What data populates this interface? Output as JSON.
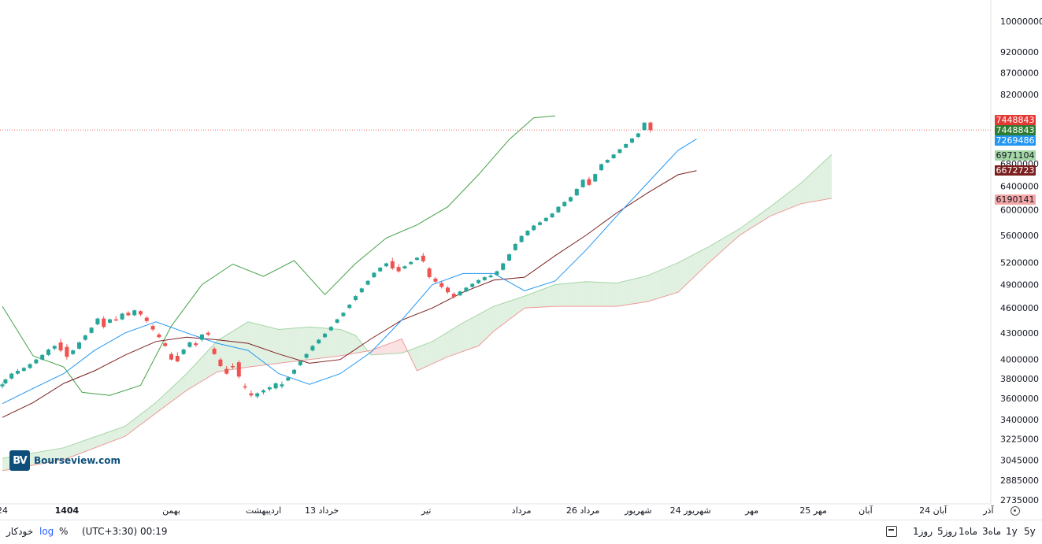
{
  "chart_data": {
    "type": "candlestick",
    "scale": "log",
    "indicator": "ichimoku",
    "y_ticks": [
      10000000,
      9200000,
      8700000,
      8200000,
      6800000,
      6400000,
      6000000,
      5600000,
      5200000,
      4900000,
      4600000,
      4300000,
      4000000,
      3800000,
      3600000,
      3400000,
      3225000,
      3045000,
      2885000,
      2735000
    ],
    "x_labels": [
      {
        "label": "24",
        "idx": 0
      },
      {
        "label": "1404",
        "idx": 21,
        "bold": true
      },
      {
        "label": "بهمن",
        "idx": 55
      },
      {
        "label": "اردیبهشت",
        "idx": 85
      },
      {
        "label": "13 خرداد",
        "idx": 104
      },
      {
        "label": "تیر",
        "idx": 138
      },
      {
        "label": "مرداد",
        "idx": 169
      },
      {
        "label": "26 مرداد",
        "idx": 189
      },
      {
        "label": "شهریور",
        "idx": 207
      },
      {
        "label": "24 شهریور",
        "idx": 224
      },
      {
        "label": "مهر",
        "idx": 244
      },
      {
        "label": "25 مهر",
        "idx": 264
      },
      {
        "label": "آبان",
        "idx": 281
      },
      {
        "label": "24 آبان",
        "idx": 303
      },
      {
        "label": "آذر",
        "idx": 321
      }
    ],
    "current_price": 7448843,
    "price_badges": [
      {
        "value": "7448843",
        "color": "#e53935"
      },
      {
        "value": "7448843",
        "color": "#2e7d32"
      },
      {
        "value": "7269486",
        "color": "#2196f3"
      },
      {
        "value": "6971104",
        "color": "#a5d6a7"
      },
      {
        "value": "6672723",
        "color": "#7b1f1f"
      },
      {
        "value": "6190141",
        "color": "#f4a7a7"
      }
    ],
    "candles": [
      [
        3720000,
        3760000,
        3700000,
        3740000
      ],
      [
        3750000,
        3800000,
        3740000,
        3790000
      ],
      [
        3800000,
        3860000,
        3790000,
        3850000
      ],
      [
        3850000,
        3900000,
        3840000,
        3880000
      ],
      [
        3880000,
        3920000,
        3870000,
        3910000
      ],
      [
        3910000,
        3960000,
        3900000,
        3950000
      ],
      [
        3960000,
        4010000,
        3950000,
        4000000
      ],
      [
        4000000,
        4060000,
        3990000,
        4050000
      ],
      [
        4050000,
        4120000,
        4040000,
        4110000
      ],
      [
        4120000,
        4160000,
        4100000,
        4150000
      ],
      [
        4190000,
        4230000,
        4080000,
        4100000
      ],
      [
        4140000,
        4170000,
        4000000,
        4030000
      ],
      [
        4060000,
        4110000,
        4050000,
        4100000
      ],
      [
        4120000,
        4200000,
        4110000,
        4190000
      ],
      [
        4220000,
        4280000,
        4210000,
        4270000
      ],
      [
        4300000,
        4370000,
        4290000,
        4360000
      ],
      [
        4400000,
        4480000,
        4390000,
        4470000
      ],
      [
        4470000,
        4500000,
        4350000,
        4370000
      ],
      [
        4420000,
        4470000,
        4410000,
        4460000
      ],
      [
        4460000,
        4500000,
        4440000,
        4450000
      ],
      [
        4460000,
        4540000,
        4450000,
        4530000
      ],
      [
        4540000,
        4560000,
        4500000,
        4510000
      ],
      [
        4510000,
        4580000,
        4500000,
        4570000
      ],
      [
        4560000,
        4570000,
        4500000,
        4520000
      ],
      [
        4480000,
        4500000,
        4420000,
        4440000
      ],
      [
        4380000,
        4400000,
        4320000,
        4340000
      ],
      [
        4280000,
        4300000,
        4240000,
        4250000
      ],
      [
        4180000,
        4200000,
        4140000,
        4150000
      ],
      [
        4060000,
        4080000,
        3990000,
        4000000
      ],
      [
        4040000,
        4080000,
        3970000,
        3980000
      ],
      [
        4060000,
        4120000,
        4050000,
        4110000
      ],
      [
        4140000,
        4200000,
        4130000,
        4190000
      ],
      [
        4180000,
        4200000,
        4140000,
        4160000
      ],
      [
        4220000,
        4290000,
        4200000,
        4280000
      ],
      [
        4300000,
        4320000,
        4260000,
        4280000
      ],
      [
        4120000,
        4140000,
        4050000,
        4060000
      ],
      [
        4000000,
        4020000,
        3920000,
        3930000
      ],
      [
        3900000,
        3930000,
        3840000,
        3850000
      ],
      [
        3930000,
        3960000,
        3900000,
        3920000
      ],
      [
        3970000,
        3990000,
        3800000,
        3820000
      ],
      [
        3720000,
        3750000,
        3690000,
        3710000
      ],
      [
        3650000,
        3680000,
        3610000,
        3630000
      ],
      [
        3620000,
        3660000,
        3600000,
        3650000
      ],
      [
        3660000,
        3690000,
        3640000,
        3680000
      ],
      [
        3690000,
        3720000,
        3670000,
        3710000
      ],
      [
        3700000,
        3760000,
        3690000,
        3750000
      ],
      [
        3720000,
        3770000,
        3700000,
        3740000
      ],
      [
        3780000,
        3820000,
        3770000,
        3810000
      ],
      [
        3850000,
        3900000,
        3840000,
        3890000
      ],
      [
        3940000,
        3990000,
        3930000,
        3980000
      ],
      [
        4020000,
        4070000,
        4010000,
        4060000
      ],
      [
        4100000,
        4160000,
        4090000,
        4150000
      ],
      [
        4180000,
        4230000,
        4170000,
        4220000
      ],
      [
        4250000,
        4300000,
        4240000,
        4290000
      ],
      [
        4330000,
        4380000,
        4320000,
        4370000
      ],
      [
        4420000,
        4470000,
        4410000,
        4460000
      ],
      [
        4500000,
        4550000,
        4490000,
        4540000
      ],
      [
        4600000,
        4650000,
        4590000,
        4640000
      ],
      [
        4700000,
        4760000,
        4690000,
        4750000
      ],
      [
        4800000,
        4860000,
        4790000,
        4850000
      ],
      [
        4900000,
        4960000,
        4890000,
        4950000
      ],
      [
        5000000,
        5070000,
        4990000,
        5060000
      ],
      [
        5080000,
        5140000,
        5070000,
        5130000
      ],
      [
        5150000,
        5200000,
        5140000,
        5190000
      ],
      [
        5220000,
        5270000,
        5100000,
        5120000
      ],
      [
        5140000,
        5180000,
        5060000,
        5080000
      ],
      [
        5120000,
        5160000,
        5110000,
        5150000
      ],
      [
        5180000,
        5220000,
        5170000,
        5210000
      ],
      [
        5240000,
        5280000,
        5230000,
        5270000
      ],
      [
        5300000,
        5340000,
        5200000,
        5220000
      ],
      [
        5120000,
        5140000,
        4980000,
        5000000
      ],
      [
        4980000,
        5000000,
        4920000,
        4940000
      ],
      [
        4920000,
        4950000,
        4850000,
        4870000
      ],
      [
        4860000,
        4880000,
        4780000,
        4800000
      ],
      [
        4780000,
        4800000,
        4720000,
        4740000
      ],
      [
        4760000,
        4820000,
        4750000,
        4810000
      ],
      [
        4810000,
        4870000,
        4800000,
        4860000
      ],
      [
        4870000,
        4920000,
        4860000,
        4910000
      ],
      [
        4920000,
        4970000,
        4910000,
        4960000
      ],
      [
        4960000,
        5010000,
        4950000,
        5000000
      ],
      [
        5000000,
        5050000,
        4990000,
        5020000
      ],
      [
        5030000,
        5090000,
        5020000,
        5080000
      ],
      [
        5100000,
        5200000,
        5090000,
        5190000
      ],
      [
        5230000,
        5330000,
        5220000,
        5320000
      ],
      [
        5380000,
        5480000,
        5370000,
        5470000
      ],
      [
        5500000,
        5600000,
        5490000,
        5590000
      ],
      [
        5600000,
        5680000,
        5590000,
        5670000
      ],
      [
        5680000,
        5760000,
        5670000,
        5750000
      ],
      [
        5760000,
        5820000,
        5750000,
        5800000
      ],
      [
        5820000,
        5880000,
        5810000,
        5870000
      ],
      [
        5880000,
        5950000,
        5870000,
        5940000
      ],
      [
        5960000,
        6060000,
        5950000,
        6050000
      ],
      [
        6060000,
        6140000,
        6050000,
        6130000
      ],
      [
        6140000,
        6220000,
        6130000,
        6210000
      ],
      [
        6240000,
        6360000,
        6230000,
        6350000
      ],
      [
        6380000,
        6520000,
        6370000,
        6510000
      ],
      [
        6520000,
        6560000,
        6400000,
        6420000
      ],
      [
        6480000,
        6620000,
        6470000,
        6610000
      ],
      [
        6680000,
        6800000,
        6670000,
        6790000
      ],
      [
        6820000,
        6880000,
        6810000,
        6870000
      ],
      [
        6900000,
        6980000,
        6890000,
        6970000
      ],
      [
        7000000,
        7080000,
        6990000,
        7070000
      ],
      [
        7100000,
        7180000,
        7090000,
        7170000
      ],
      [
        7200000,
        7290000,
        7180000,
        7280000
      ],
      [
        7310000,
        7390000,
        7290000,
        7380000
      ],
      [
        7450000,
        7600000,
        7440000,
        7600000
      ],
      [
        7600000,
        7620000,
        7400000,
        7448843
      ]
    ],
    "candle_idx_map": [
      0,
      1,
      3,
      5,
      7,
      9,
      11,
      13,
      15,
      17,
      19,
      21,
      23,
      25,
      27,
      29,
      31,
      33,
      35,
      37,
      39,
      41,
      43,
      45,
      47,
      49,
      51,
      53,
      55,
      57,
      59,
      61,
      63,
      65,
      67,
      69,
      71,
      73,
      75,
      77,
      79,
      81,
      83,
      85,
      87,
      89,
      91,
      93,
      95,
      97,
      99,
      101,
      103,
      105,
      107,
      109,
      111,
      113,
      115,
      117,
      119,
      121,
      123,
      125,
      127,
      129,
      131,
      133,
      135,
      137,
      139,
      141,
      143,
      145,
      147,
      149,
      151,
      153,
      155,
      157,
      159,
      161,
      163,
      165,
      167,
      169,
      171,
      173,
      175,
      177,
      179,
      181,
      183,
      185,
      187,
      189,
      191,
      193,
      195,
      197,
      199,
      201,
      203,
      205,
      207,
      209,
      211
    ],
    "tenkan": [
      [
        0,
        3550000
      ],
      [
        10,
        3700000
      ],
      [
        20,
        3850000
      ],
      [
        30,
        4100000
      ],
      [
        40,
        4300000
      ],
      [
        50,
        4430000
      ],
      [
        60,
        4300000
      ],
      [
        70,
        4180000
      ],
      [
        80,
        4100000
      ],
      [
        90,
        3850000
      ],
      [
        100,
        3740000
      ],
      [
        110,
        3850000
      ],
      [
        120,
        4080000
      ],
      [
        130,
        4450000
      ],
      [
        140,
        4900000
      ],
      [
        150,
        5050000
      ],
      [
        160,
        5050000
      ],
      [
        170,
        4820000
      ],
      [
        180,
        4950000
      ],
      [
        190,
        5380000
      ],
      [
        200,
        5900000
      ],
      [
        210,
        6450000
      ],
      [
        220,
        7050000
      ],
      [
        226,
        7269486
      ]
    ],
    "kijun": [
      [
        0,
        3420000
      ],
      [
        10,
        3560000
      ],
      [
        20,
        3750000
      ],
      [
        30,
        3880000
      ],
      [
        40,
        4050000
      ],
      [
        50,
        4200000
      ],
      [
        60,
        4250000
      ],
      [
        70,
        4220000
      ],
      [
        80,
        4180000
      ],
      [
        90,
        4060000
      ],
      [
        100,
        3960000
      ],
      [
        110,
        4000000
      ],
      [
        120,
        4230000
      ],
      [
        130,
        4450000
      ],
      [
        140,
        4600000
      ],
      [
        150,
        4800000
      ],
      [
        160,
        4960000
      ],
      [
        170,
        5000000
      ],
      [
        180,
        5300000
      ],
      [
        190,
        5600000
      ],
      [
        200,
        5950000
      ],
      [
        210,
        6280000
      ],
      [
        220,
        6600000
      ],
      [
        226,
        6672723
      ]
    ],
    "chikou": [
      [
        0,
        4620000
      ],
      [
        10,
        4040000
      ],
      [
        20,
        3920000
      ],
      [
        26,
        3660000
      ],
      [
        35,
        3630000
      ],
      [
        45,
        3730000
      ],
      [
        55,
        4380000
      ],
      [
        65,
        4900000
      ],
      [
        75,
        5180000
      ],
      [
        85,
        5010000
      ],
      [
        95,
        5230000
      ],
      [
        105,
        4770000
      ],
      [
        115,
        5190000
      ],
      [
        125,
        5560000
      ],
      [
        135,
        5760000
      ],
      [
        145,
        6050000
      ],
      [
        155,
        6600000
      ],
      [
        165,
        7260000
      ],
      [
        173,
        7700000
      ],
      [
        180,
        7740000
      ]
    ],
    "span_a": [
      [
        0,
        3060000
      ],
      [
        20,
        3150000
      ],
      [
        40,
        3340000
      ],
      [
        50,
        3560000
      ],
      [
        60,
        3850000
      ],
      [
        70,
        4210000
      ],
      [
        80,
        4430000
      ],
      [
        90,
        4340000
      ],
      [
        100,
        4370000
      ],
      [
        110,
        4340000
      ],
      [
        115,
        4270000
      ],
      [
        120,
        4050000
      ],
      [
        130,
        4070000
      ],
      [
        140,
        4200000
      ],
      [
        150,
        4420000
      ],
      [
        160,
        4620000
      ],
      [
        170,
        4750000
      ],
      [
        180,
        4900000
      ],
      [
        190,
        4940000
      ],
      [
        200,
        4920000
      ],
      [
        210,
        5020000
      ],
      [
        220,
        5200000
      ],
      [
        230,
        5430000
      ],
      [
        240,
        5700000
      ],
      [
        250,
        6050000
      ],
      [
        260,
        6450000
      ],
      [
        270,
        6971104
      ]
    ],
    "span_b": [
      [
        0,
        2960000
      ],
      [
        20,
        3050000
      ],
      [
        40,
        3250000
      ],
      [
        50,
        3460000
      ],
      [
        60,
        3680000
      ],
      [
        70,
        3870000
      ],
      [
        80,
        3920000
      ],
      [
        90,
        3960000
      ],
      [
        100,
        4000000
      ],
      [
        110,
        4040000
      ],
      [
        120,
        4100000
      ],
      [
        130,
        4230000
      ],
      [
        135,
        3880000
      ],
      [
        145,
        4030000
      ],
      [
        155,
        4150000
      ],
      [
        160,
        4320000
      ],
      [
        170,
        4600000
      ],
      [
        180,
        4620000
      ],
      [
        200,
        4620000
      ],
      [
        210,
        4680000
      ],
      [
        220,
        4800000
      ],
      [
        230,
        5200000
      ],
      [
        240,
        5600000
      ],
      [
        250,
        5900000
      ],
      [
        260,
        6100000
      ],
      [
        270,
        6190141
      ]
    ]
  },
  "bottom_bar": {
    "auto": "خودکار",
    "log": "log",
    "percent": "%",
    "time": "(UTC+3:30) 00:19",
    "ranges": [
      "5y",
      "1y",
      "3ماه",
      "1ماه",
      "5روز",
      "1روز"
    ]
  },
  "watermark": {
    "logo": "BV",
    "text": "Bourseview.com"
  },
  "colors": {
    "up": "#26a69a",
    "down": "#ef5350",
    "tenkan": "#2196f3",
    "kijun": "#7b1f1f",
    "chikou": "#43a047",
    "cloud_green": "#c8e6c9",
    "cloud_red": "#f8c8c8"
  }
}
